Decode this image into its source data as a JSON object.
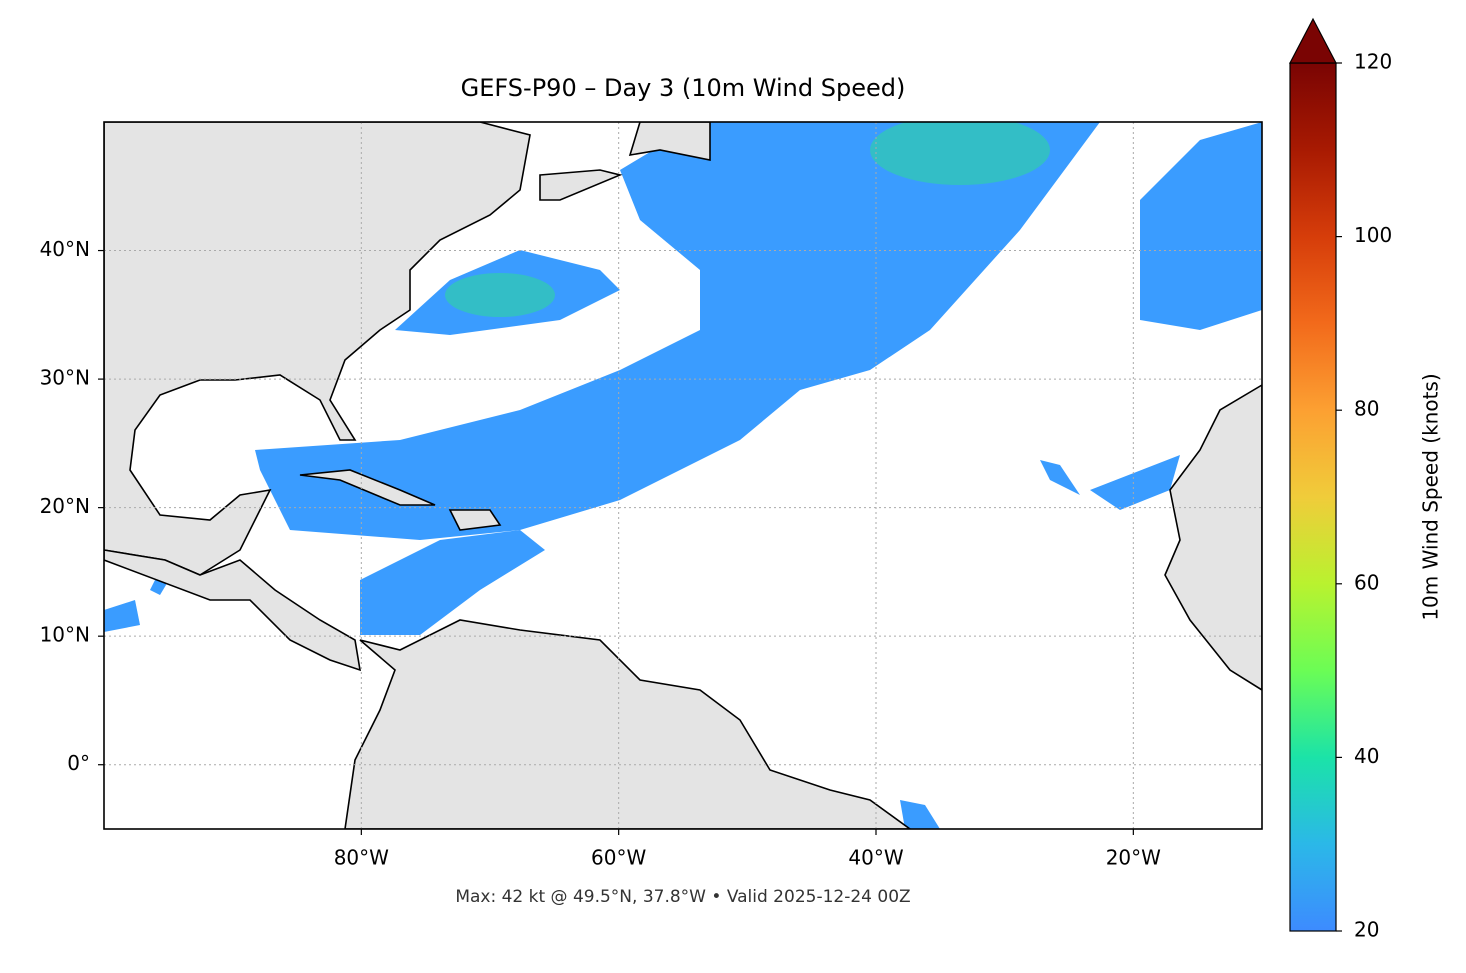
{
  "chart_data": {
    "type": "map",
    "title": "GEFS-P90 – Day 3 (10m Wind Speed)",
    "subtitle": "Max: 42 kt @ 49.5°N, 37.8°W • Valid 2025-12-24 00Z",
    "xlim": [
      -100,
      -10
    ],
    "ylim": [
      -5,
      50
    ],
    "xticks": [
      {
        "value": -80,
        "label": "80°W"
      },
      {
        "value": -60,
        "label": "60°W"
      },
      {
        "value": -40,
        "label": "40°W"
      },
      {
        "value": -20,
        "label": "20°W"
      }
    ],
    "yticks": [
      {
        "value": 0,
        "label": "0°"
      },
      {
        "value": 10,
        "label": "10°N"
      },
      {
        "value": 20,
        "label": "20°N"
      },
      {
        "value": 30,
        "label": "30°N"
      },
      {
        "value": 40,
        "label": "40°N"
      }
    ],
    "grid": true,
    "colorbar": {
      "label": "10m Wind Speed (knots)",
      "lim": [
        20,
        120
      ],
      "ticks": [
        20,
        40,
        60,
        80,
        100,
        120
      ]
    }
  }
}
